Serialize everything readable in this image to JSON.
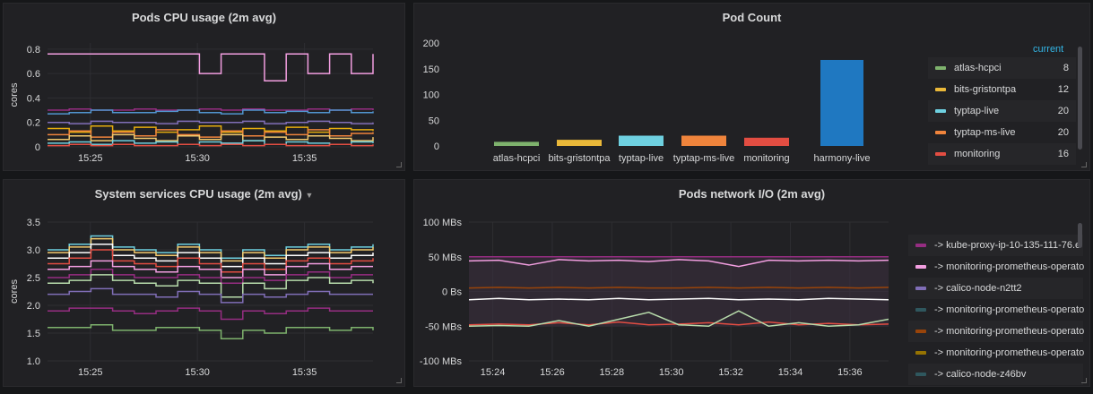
{
  "panels": {
    "cpu": {
      "title": "Pods CPU usage (2m avg)",
      "ylabel": "cores"
    },
    "count": {
      "title": "Pod Count",
      "legend_header": "current",
      "legend": [
        {
          "name": "atlas-hcpci",
          "value": "8",
          "color": "#7eb26d"
        },
        {
          "name": "bits-gristontpa",
          "value": "12",
          "color": "#eab839"
        },
        {
          "name": "typtap-live",
          "value": "20",
          "color": "#6ed0e0"
        },
        {
          "name": "typtap-ms-live",
          "value": "20",
          "color": "#ef843c"
        },
        {
          "name": "monitoring",
          "value": "16",
          "color": "#e24d42"
        }
      ]
    },
    "sys": {
      "title": "System services CPU usage (2m avg)",
      "ylabel": "cores"
    },
    "net": {
      "title": "Pods network I/O (2m avg)",
      "legend": [
        {
          "name": "-> kube-proxy-ip-10-135-111-76.e",
          "color": "#962d82"
        },
        {
          "name": "-> monitoring-prometheus-operato",
          "color": "#f29ee0"
        },
        {
          "name": "-> calico-node-n2tt2",
          "color": "#806eb7"
        },
        {
          "name": "-> monitoring-prometheus-operato",
          "color": "#2f575e"
        },
        {
          "name": "-> monitoring-prometheus-operato",
          "color": "#99440a"
        },
        {
          "name": "-> monitoring-prometheus-operato",
          "color": "#967302"
        },
        {
          "name": "-> calico-node-z46bv",
          "color": "#2f575e"
        }
      ]
    }
  },
  "chart_data": [
    {
      "type": "line",
      "title": "Pods CPU usage (2m avg)",
      "ylabel": "cores",
      "ylim": [
        0,
        0.85
      ],
      "yticks": [
        "0",
        "0.2",
        "0.4",
        "0.6",
        "0.8"
      ],
      "ytick_values": [
        0,
        0.2,
        0.4,
        0.6,
        0.8
      ],
      "xticks": [
        "15:25",
        "15:30",
        "15:35"
      ],
      "xtick_values": [
        2,
        7,
        12
      ],
      "xlim": [
        0,
        15.2
      ],
      "series": [
        {
          "color": "#f29ee0",
          "values": [
            0.76,
            0.76,
            0.76,
            0.76,
            0.76,
            0.76,
            0.76,
            0.6,
            0.76,
            0.76,
            0.54,
            0.76,
            0.6,
            0.76,
            0.6,
            0.76
          ]
        },
        {
          "color": "#962d82",
          "values": [
            0.3,
            0.31,
            0.3,
            0.3,
            0.31,
            0.3,
            0.3,
            0.31,
            0.3,
            0.31,
            0.3,
            0.3,
            0.31,
            0.3,
            0.31,
            0.3
          ]
        },
        {
          "color": "#5195ce",
          "values": [
            0.27,
            0.28,
            0.3,
            0.28,
            0.28,
            0.29,
            0.3,
            0.28,
            0.27,
            0.3,
            0.28,
            0.29,
            0.28,
            0.3,
            0.28,
            0.29
          ]
        },
        {
          "color": "#806eb7",
          "values": [
            0.2,
            0.19,
            0.21,
            0.2,
            0.2,
            0.19,
            0.21,
            0.2,
            0.2,
            0.21,
            0.19,
            0.2,
            0.21,
            0.2,
            0.19,
            0.2
          ]
        },
        {
          "color": "#e5ac0e",
          "values": [
            0.15,
            0.12,
            0.17,
            0.13,
            0.16,
            0.12,
            0.14,
            0.17,
            0.12,
            0.15,
            0.13,
            0.16,
            0.12,
            0.15,
            0.14,
            0.13
          ]
        },
        {
          "color": "#ef843c",
          "values": [
            0.1,
            0.13,
            0.08,
            0.12,
            0.09,
            0.14,
            0.1,
            0.08,
            0.13,
            0.09,
            0.12,
            0.1,
            0.14,
            0.09,
            0.11,
            0.12
          ]
        },
        {
          "color": "#f2c96d",
          "values": [
            0.06,
            0.09,
            0.05,
            0.1,
            0.07,
            0.05,
            0.09,
            0.06,
            0.1,
            0.05,
            0.08,
            0.06,
            0.09,
            0.07,
            0.05,
            0.08
          ]
        },
        {
          "color": "#6ed0e0",
          "values": [
            0.03,
            0.04,
            0.02,
            0.05,
            0.03,
            0.04,
            0.02,
            0.04,
            0.03,
            0.05,
            0.02,
            0.04,
            0.03,
            0.02,
            0.04,
            0.03
          ]
        },
        {
          "color": "#e24d42",
          "values": [
            0.01,
            0.02,
            0.01,
            0.02,
            0.01,
            0.01,
            0.02,
            0.01,
            0.02,
            0.01,
            0.02,
            0.01,
            0.01,
            0.02,
            0.01,
            0.02
          ]
        }
      ]
    },
    {
      "type": "bar",
      "title": "Pod Count",
      "categories": [
        "atlas-hcpci",
        "bits-gristontpa",
        "typtap-live",
        "typtap-ms-live",
        "monitoring",
        "harmony-live"
      ],
      "values": [
        8,
        12,
        20,
        20,
        16,
        167
      ],
      "colors": [
        "#7eb26d",
        "#eab839",
        "#6ed0e0",
        "#ef843c",
        "#e24d42",
        "#1f78c1"
      ],
      "ylim": [
        0,
        200
      ],
      "yticks": [
        "0",
        "50",
        "100",
        "150",
        "200"
      ],
      "ytick_values": [
        0,
        50,
        100,
        150,
        200
      ]
    },
    {
      "type": "line",
      "title": "System services CPU usage (2m avg)",
      "ylabel": "cores",
      "ylim": [
        1.0,
        3.5
      ],
      "yticks": [
        "1.0",
        "1.5",
        "2.0",
        "2.5",
        "3.0",
        "3.5"
      ],
      "ytick_values": [
        1,
        1.5,
        2,
        2.5,
        3,
        3.5
      ],
      "xticks": [
        "15:25",
        "15:30",
        "15:35"
      ],
      "xtick_values": [
        2,
        7,
        12
      ],
      "xlim": [
        0,
        15.2
      ],
      "series": [
        {
          "color": "#6ed0e0",
          "values": [
            3.0,
            3.1,
            3.25,
            3.05,
            3.0,
            2.95,
            3.1,
            3.0,
            2.85,
            3.0,
            2.9,
            3.05,
            3.1,
            3.0,
            3.05,
            3.1
          ]
        },
        {
          "color": "#f2c96d",
          "values": [
            2.95,
            3.05,
            3.2,
            3.0,
            2.95,
            2.9,
            3.05,
            2.95,
            2.8,
            2.95,
            2.85,
            3.0,
            3.05,
            2.95,
            3.0,
            3.05
          ]
        },
        {
          "color": "#ffffff",
          "values": [
            2.85,
            2.95,
            3.1,
            2.9,
            2.85,
            2.8,
            2.95,
            2.85,
            2.7,
            2.85,
            2.75,
            2.9,
            2.95,
            2.85,
            2.9,
            2.95
          ]
        },
        {
          "color": "#e24d42",
          "values": [
            2.75,
            2.85,
            3.0,
            2.8,
            2.75,
            2.7,
            2.85,
            2.75,
            2.6,
            2.75,
            2.65,
            2.8,
            2.85,
            2.75,
            2.8,
            2.85
          ]
        },
        {
          "color": "#f29ee0",
          "values": [
            2.65,
            2.7,
            2.8,
            2.7,
            2.65,
            2.6,
            2.7,
            2.65,
            2.5,
            2.65,
            2.55,
            2.7,
            2.75,
            2.65,
            2.7,
            2.7
          ]
        },
        {
          "color": "#962d82",
          "values": [
            2.5,
            2.55,
            2.65,
            2.55,
            2.5,
            2.5,
            2.55,
            2.5,
            2.4,
            2.5,
            2.45,
            2.55,
            2.6,
            2.5,
            2.55,
            2.55
          ]
        },
        {
          "color": "#b7dbab",
          "values": [
            2.4,
            2.45,
            2.55,
            2.45,
            2.4,
            2.35,
            2.45,
            2.4,
            2.15,
            2.4,
            2.3,
            2.45,
            2.5,
            2.4,
            2.45,
            2.4
          ]
        },
        {
          "color": "#806eb7",
          "values": [
            2.2,
            2.25,
            2.3,
            2.2,
            2.2,
            2.15,
            2.25,
            2.2,
            2.05,
            2.2,
            2.15,
            2.2,
            2.25,
            2.2,
            2.2,
            2.2
          ]
        },
        {
          "color": "#962d82",
          "values": [
            1.9,
            1.95,
            1.95,
            1.9,
            1.85,
            1.9,
            1.95,
            1.9,
            1.75,
            1.9,
            1.85,
            1.9,
            1.95,
            1.9,
            1.9,
            1.9
          ]
        },
        {
          "color": "#7eb26d",
          "values": [
            1.6,
            1.6,
            1.65,
            1.55,
            1.55,
            1.6,
            1.6,
            1.55,
            1.4,
            1.55,
            1.5,
            1.6,
            1.6,
            1.55,
            1.6,
            1.55
          ]
        }
      ]
    },
    {
      "type": "line",
      "title": "Pods network I/O (2m avg)",
      "ylim": [
        -100,
        100
      ],
      "yticks": [
        "-100 MBs",
        "-50 MBs",
        "0 Bs",
        "50 MBs",
        "100 MBs"
      ],
      "ytick_values": [
        -100,
        -50,
        0,
        50,
        100
      ],
      "xticks": [
        "15:24",
        "15:26",
        "15:28",
        "15:30",
        "15:32",
        "15:34",
        "15:36"
      ],
      "xtick_values": [
        1,
        3,
        5,
        7,
        9,
        11,
        13
      ],
      "xlim": [
        0.2,
        14.3
      ],
      "series": [
        {
          "color": "#962d82",
          "values": [
            50,
            50,
            50,
            50,
            50,
            50,
            50,
            50,
            50,
            50,
            50,
            50,
            50,
            50,
            50
          ]
        },
        {
          "color": "#f29ee0",
          "values": [
            44,
            45,
            38,
            46,
            44,
            45,
            43,
            46,
            44,
            36,
            45,
            44,
            45,
            44,
            45
          ]
        },
        {
          "color": "#99440a",
          "values": [
            5,
            6,
            5,
            6,
            5,
            6,
            5,
            5,
            6,
            5,
            6,
            5,
            6,
            5,
            6
          ]
        },
        {
          "color": "#ffffff",
          "values": [
            -12,
            -10,
            -12,
            -11,
            -12,
            -10,
            -12,
            -11,
            -10,
            -12,
            -11,
            -12,
            -10,
            -11,
            -12
          ]
        },
        {
          "color": "#e24d42",
          "values": [
            -48,
            -47,
            -48,
            -45,
            -48,
            -44,
            -48,
            -47,
            -45,
            -48,
            -44,
            -48,
            -46,
            -48,
            -47
          ]
        },
        {
          "color": "#b7dbab",
          "values": [
            -50,
            -49,
            -50,
            -42,
            -50,
            -40,
            -30,
            -48,
            -50,
            -28,
            -50,
            -45,
            -50,
            -48,
            -40
          ]
        }
      ]
    }
  ]
}
